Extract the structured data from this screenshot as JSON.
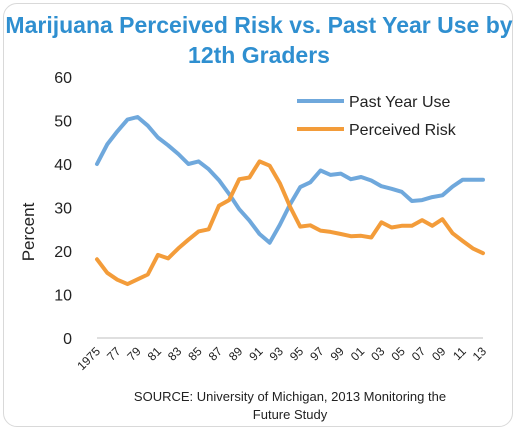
{
  "chart_data": {
    "type": "line",
    "title": "Marijuana Perceived Risk vs. Past Year Use by 12th Graders",
    "ylabel": "Percent",
    "xlabel": "",
    "ylim": [
      0,
      60
    ],
    "yticks": [
      "0",
      "10",
      "20",
      "30",
      "40",
      "50",
      "60"
    ],
    "xticks": [
      {
        "x": 1975,
        "label": "1975"
      },
      {
        "x": 1977,
        "label": "77"
      },
      {
        "x": 1979,
        "label": "79"
      },
      {
        "x": 1981,
        "label": "81"
      },
      {
        "x": 1983,
        "label": "83"
      },
      {
        "x": 1985,
        "label": "85"
      },
      {
        "x": 1987,
        "label": "87"
      },
      {
        "x": 1989,
        "label": "89"
      },
      {
        "x": 1991,
        "label": "91"
      },
      {
        "x": 1993,
        "label": "93"
      },
      {
        "x": 1995,
        "label": "95"
      },
      {
        "x": 1997,
        "label": "97"
      },
      {
        "x": 1999,
        "label": "99"
      },
      {
        "x": 2001,
        "label": "01"
      },
      {
        "x": 2003,
        "label": "03"
      },
      {
        "x": 2005,
        "label": "05"
      },
      {
        "x": 2007,
        "label": "07"
      },
      {
        "x": 2009,
        "label": "09"
      },
      {
        "x": 2011,
        "label": "11"
      },
      {
        "x": 2013,
        "label": "13"
      }
    ],
    "x": [
      1975,
      1976,
      1977,
      1978,
      1979,
      1980,
      1981,
      1982,
      1983,
      1984,
      1985,
      1986,
      1987,
      1988,
      1989,
      1990,
      1991,
      1992,
      1993,
      1994,
      1995,
      1996,
      1997,
      1998,
      1999,
      2000,
      2001,
      2002,
      2003,
      2004,
      2005,
      2006,
      2007,
      2008,
      2009,
      2010,
      2011,
      2012,
      2013
    ],
    "series": [
      {
        "name": "Past Year Use",
        "color": "#6fa8dc",
        "values": [
          40.0,
          44.5,
          47.5,
          50.2,
          50.8,
          48.8,
          46.1,
          44.3,
          42.3,
          40.0,
          40.6,
          38.8,
          36.3,
          33.1,
          29.6,
          27.0,
          23.9,
          21.9,
          26.0,
          30.7,
          34.7,
          35.8,
          38.5,
          37.5,
          37.8,
          36.5,
          37.0,
          36.2,
          34.9,
          34.3,
          33.6,
          31.5,
          31.7,
          32.4,
          32.8,
          34.8,
          36.4,
          36.4,
          36.4
        ]
      },
      {
        "name": "Perceived Risk",
        "color": "#f39c3a",
        "values": [
          18.1,
          15.0,
          13.4,
          12.4,
          13.5,
          14.6,
          19.1,
          18.3,
          20.6,
          22.6,
          24.5,
          25.0,
          30.4,
          31.7,
          36.5,
          36.9,
          40.6,
          39.6,
          35.6,
          30.2,
          25.6,
          25.9,
          24.7,
          24.4,
          23.9,
          23.4,
          23.5,
          23.1,
          26.6,
          25.4,
          25.8,
          25.8,
          27.1,
          25.8,
          27.3,
          24.1,
          22.3,
          20.6,
          19.5
        ]
      }
    ],
    "legend_position": "top-right",
    "grid": false
  },
  "source": "SOURCE: University of Michigan, 2013 Monitoring the\nFuture Study",
  "colors": {
    "title": "#2f8fd0",
    "axis": "#222222"
  }
}
